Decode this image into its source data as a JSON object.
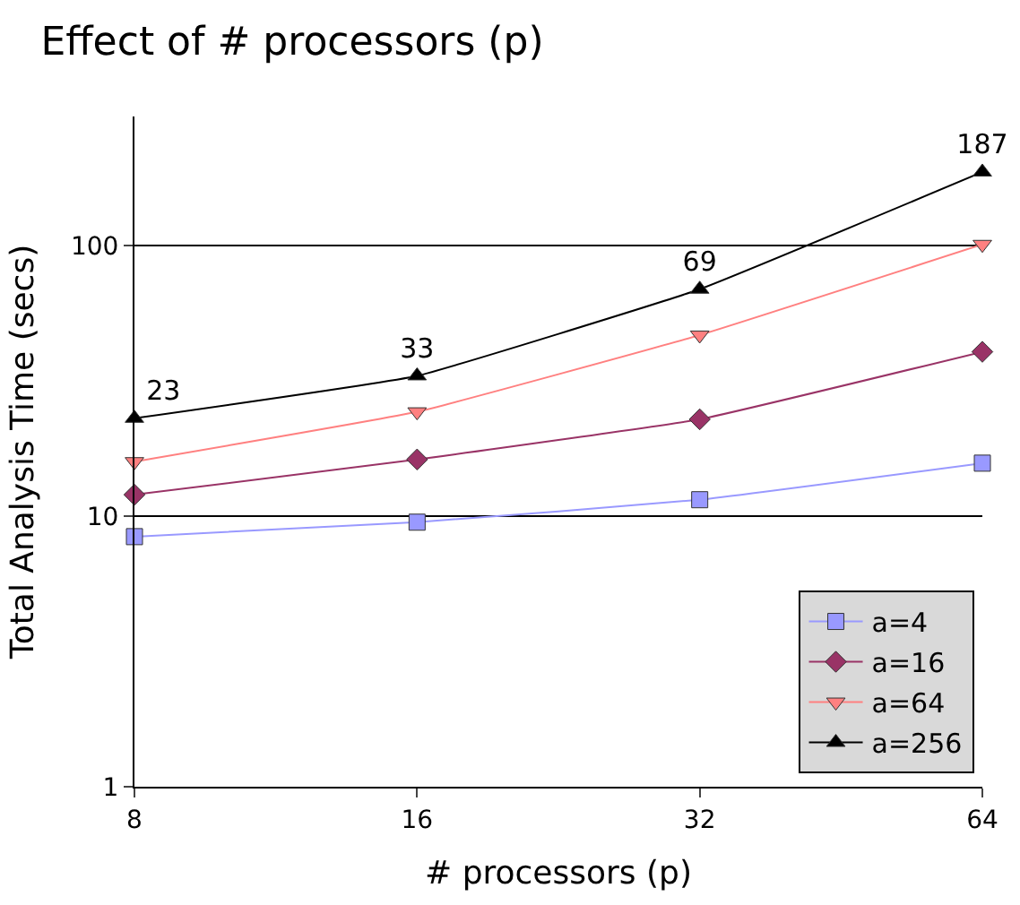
{
  "chart_data": {
    "type": "line",
    "title": "Effect of # processors (p)",
    "xlabel": "# processors (p)",
    "ylabel": "Total Analysis Time (secs)",
    "x": [
      8,
      16,
      32,
      64
    ],
    "log": "xy",
    "xlim": [
      8,
      64
    ],
    "xticks": [
      8,
      16,
      32,
      64
    ],
    "ylim": [
      1,
      300
    ],
    "yticks": [
      1,
      10,
      100
    ],
    "grid": "y",
    "legend": "bottom right",
    "series": [
      {
        "name": "a=4",
        "color": "#9999ff",
        "marker": "square",
        "values": [
          8.4,
          9.5,
          11.5,
          15.7
        ]
      },
      {
        "name": "a=16",
        "color": "#993366",
        "marker": "diamond",
        "values": [
          12,
          16.2,
          22.8,
          40.5
        ]
      },
      {
        "name": "a=64",
        "color": "#ff8080",
        "marker": "triangle-down",
        "values": [
          15.9,
          24.3,
          46.7,
          101
        ]
      },
      {
        "name": "a=256",
        "color": "#000000",
        "marker": "triangle",
        "values": [
          23,
          33,
          69,
          187
        ],
        "value_labels": [
          "23",
          "33",
          "69",
          "187"
        ]
      }
    ]
  }
}
